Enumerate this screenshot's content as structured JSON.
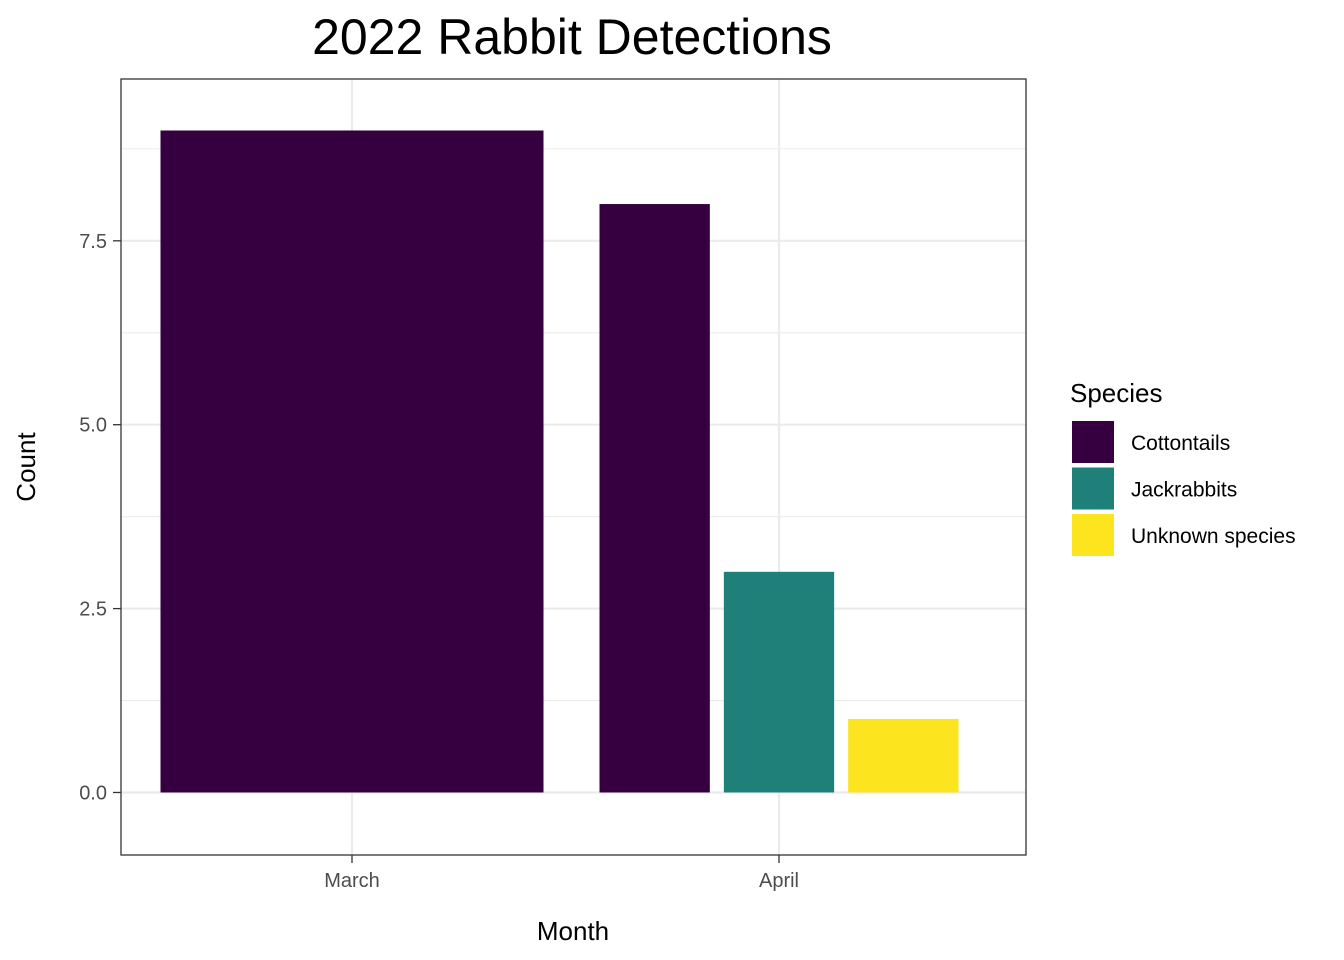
{
  "chart_data": {
    "type": "bar",
    "title": "2022 Rabbit Detections",
    "xlabel": "Month",
    "ylabel": "Count",
    "categories": [
      "March",
      "April"
    ],
    "series": [
      {
        "name": "Cottontails",
        "color": "#360040",
        "values": [
          9,
          8
        ]
      },
      {
        "name": "Jackrabbits",
        "color": "#1F7F79",
        "values": [
          null,
          3
        ]
      },
      {
        "name": "Unknown species",
        "color": "#FCE51E",
        "values": [
          null,
          1
        ]
      }
    ],
    "ylim": [
      -0.85,
      9.7
    ],
    "yticks": [
      0,
      2.5,
      5,
      7.5
    ],
    "ytick_labels": [
      "0.0",
      "2.5",
      "5.0",
      "7.5"
    ],
    "grid": true,
    "legend": {
      "title": "Species",
      "position": "right"
    }
  }
}
